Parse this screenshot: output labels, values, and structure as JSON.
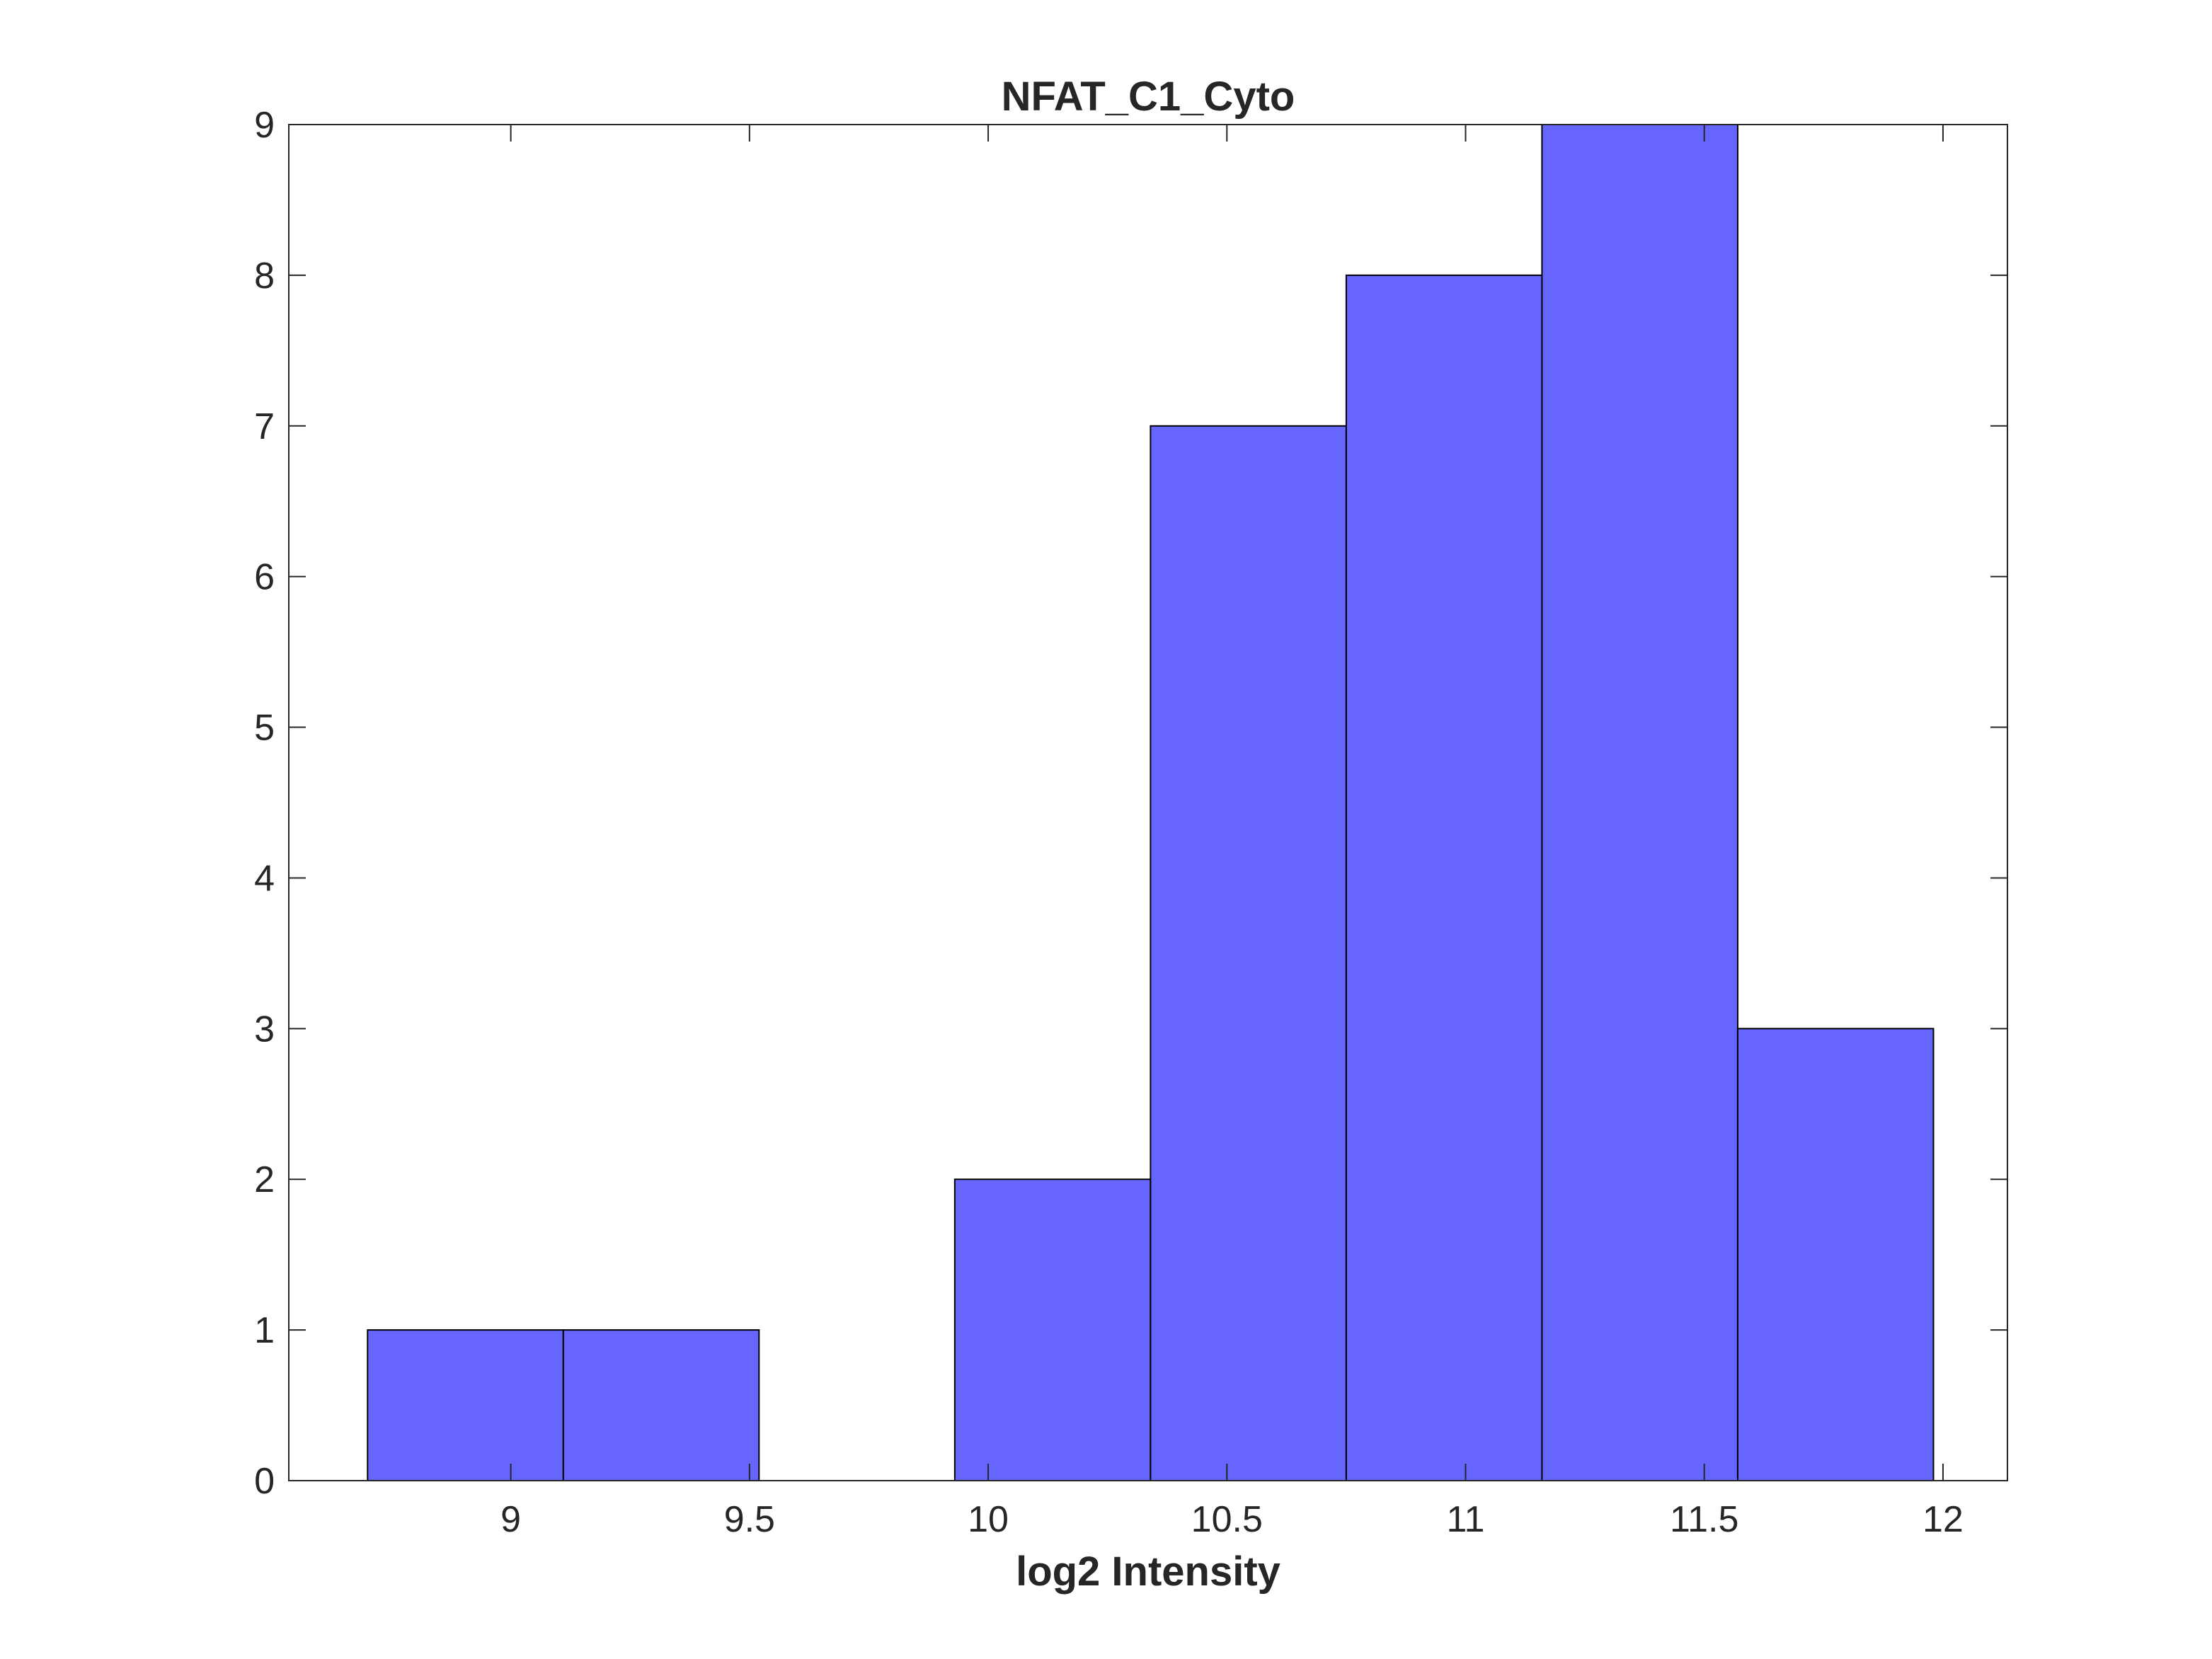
{
  "chart_data": {
    "type": "bar",
    "title": "NFAT_C1_Cyto",
    "xlabel": "log2 Intensity",
    "ylabel": "",
    "xlim": [
      8.535,
      12.135
    ],
    "ylim": [
      0,
      9
    ],
    "xticks": [
      "9",
      "9.5",
      "10",
      "10.5",
      "11",
      "11.5",
      "12"
    ],
    "yticks": [
      "0",
      "1",
      "2",
      "3",
      "4",
      "5",
      "6",
      "7",
      "8",
      "9"
    ],
    "bin_edges": [
      8.7,
      9.11,
      9.52,
      9.93,
      10.34,
      10.75,
      11.16,
      11.57,
      11.98
    ],
    "values": [
      1,
      1,
      0,
      2,
      7,
      8,
      9,
      3
    ],
    "bar_color": "#6666ff",
    "edge_color": "#000000",
    "grid": false,
    "legend": "none"
  }
}
